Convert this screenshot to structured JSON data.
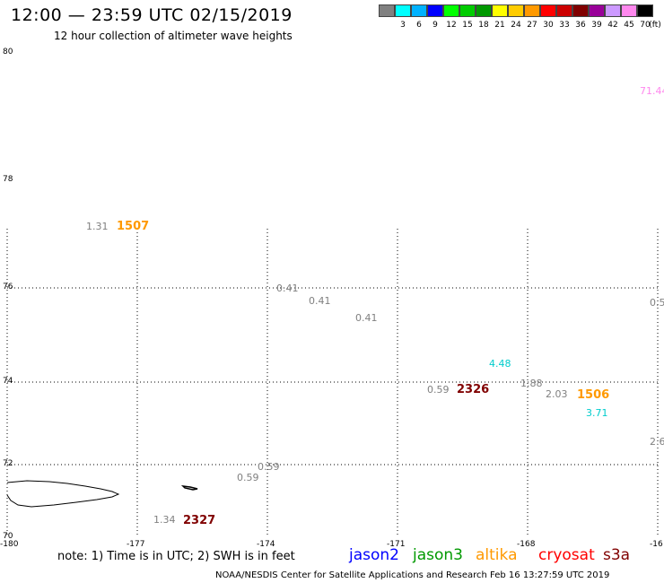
{
  "header": {
    "title": "12:00 — 23:59 UTC 02/15/2019",
    "subtitle": "12 hour collection of altimeter wave heights"
  },
  "legend": {
    "unit": "(ft)",
    "swatches": [
      {
        "color": "#808080",
        "label": ""
      },
      {
        "color": "#00ffff",
        "label": "3"
      },
      {
        "color": "#00b2ff",
        "label": "6"
      },
      {
        "color": "#0000ff",
        "label": "9"
      },
      {
        "color": "#00ff00",
        "label": "12"
      },
      {
        "color": "#00cc00",
        "label": "15"
      },
      {
        "color": "#009900",
        "label": "18"
      },
      {
        "color": "#ffff00",
        "label": "21"
      },
      {
        "color": "#ffcc00",
        "label": "24"
      },
      {
        "color": "#ff9900",
        "label": "27"
      },
      {
        "color": "#ff0000",
        "label": "30"
      },
      {
        "color": "#cc0000",
        "label": "33"
      },
      {
        "color": "#800000",
        "label": "36"
      },
      {
        "color": "#990099",
        "label": "39"
      },
      {
        "color": "#cc99ff",
        "label": "42"
      },
      {
        "color": "#ff88ee",
        "label": "45"
      },
      {
        "color": "#000000",
        "label": "70"
      }
    ]
  },
  "axes": {
    "lat_labels": [
      "80",
      "78",
      "76",
      "74",
      "72",
      "70"
    ],
    "lon_labels": [
      "-180",
      "-177",
      "-174",
      "-171",
      "-168",
      "-16"
    ]
  },
  "observations": [
    {
      "id": "o1",
      "text": "71.44",
      "color": "#ff88ee"
    },
    {
      "id": "o2",
      "text": "1.31",
      "color": "#808080"
    },
    {
      "id": "o3",
      "text": "0.41",
      "color": "#808080"
    },
    {
      "id": "o4",
      "text": "0.41",
      "color": "#808080"
    },
    {
      "id": "o5",
      "text": "0.41",
      "color": "#808080"
    },
    {
      "id": "o6",
      "text": "0.5",
      "color": "#808080"
    },
    {
      "id": "o7",
      "text": "4.48",
      "color": "#00cccc"
    },
    {
      "id": "o8",
      "text": "1.88",
      "color": "#808080"
    },
    {
      "id": "o9",
      "text": "0.59",
      "color": "#808080"
    },
    {
      "id": "o10",
      "text": "2.03",
      "color": "#808080"
    },
    {
      "id": "o11",
      "text": "3.71",
      "color": "#00cccc"
    },
    {
      "id": "o12",
      "text": "2.6",
      "color": "#808080"
    },
    {
      "id": "o13",
      "text": "0.59",
      "color": "#808080"
    },
    {
      "id": "o14",
      "text": "0.59",
      "color": "#808080"
    },
    {
      "id": "o15",
      "text": "1.34",
      "color": "#808080"
    }
  ],
  "passes": [
    {
      "id": "p1",
      "text": "1507",
      "color": "#ff9900"
    },
    {
      "id": "p2",
      "text": "2326",
      "color": "#800000"
    },
    {
      "id": "p3",
      "text": "1506",
      "color": "#ff9900"
    },
    {
      "id": "p4",
      "text": "2327",
      "color": "#800000"
    }
  ],
  "footer": {
    "note": "note: 1) Time is in UTC; 2) SWH is in feet",
    "satellites": [
      {
        "name": "jason2",
        "color": "#0000ff"
      },
      {
        "name": "jason3",
        "color": "#009900"
      },
      {
        "name": "altika",
        "color": "#ff9900"
      },
      {
        "name": "cryosat",
        "color": "#ff0000"
      },
      {
        "name": "s3a",
        "color": "#800000"
      }
    ],
    "credit": "NOAA/NESDIS Center for Satellite Applications and Research    Feb 16 13:27:59 UTC 2019"
  }
}
